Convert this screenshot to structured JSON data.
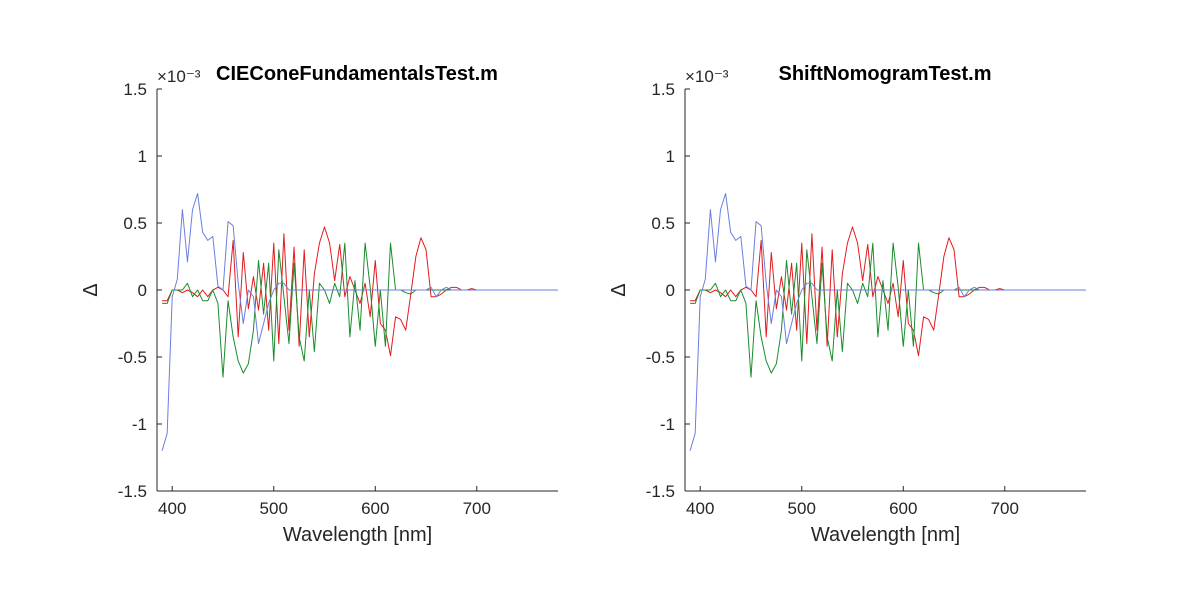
{
  "colors": {
    "red": "#e41a1c",
    "green": "#1a8c2e",
    "blue": "#6a7fe0",
    "axis": "#262626"
  },
  "chart_data": [
    {
      "type": "line",
      "title": "CIEConeFundamentalsTest.m",
      "xlabel": "Wavelength [nm]",
      "ylabel": "Δ",
      "exponent_label": "×10⁻³",
      "xlim": [
        385,
        780
      ],
      "ylim": [
        -1.5,
        1.5
      ],
      "xticks": [
        400,
        500,
        600,
        700
      ],
      "yticks": [
        -1.5,
        -1,
        -0.5,
        0,
        0.5,
        1,
        1.5
      ],
      "xtick_labels": [
        "400",
        "500",
        "600",
        "700"
      ],
      "ytick_labels": [
        "-1.5",
        "-1",
        "-0.5",
        "0",
        "0.5",
        "1",
        "1.5"
      ],
      "grid": false,
      "series": [
        {
          "color": "red",
          "x": [
            390,
            395,
            400,
            405,
            410,
            415,
            420,
            425,
            430,
            435,
            440,
            445,
            450,
            455,
            460,
            465,
            470,
            475,
            480,
            485,
            490,
            495,
            500,
            505,
            510,
            515,
            520,
            525,
            530,
            535,
            540,
            545,
            550,
            555,
            560,
            565,
            570,
            575,
            580,
            585,
            590,
            595,
            600,
            605,
            610,
            615,
            620,
            625,
            630,
            635,
            640,
            645,
            650,
            655,
            660,
            665,
            670,
            675,
            680,
            685,
            690,
            695,
            700,
            705,
            710,
            715,
            720,
            780
          ],
          "y": [
            -0.08,
            -0.08,
            0.0,
            0.0,
            -0.02,
            0.0,
            -0.02,
            -0.05,
            0.0,
            -0.05,
            0.0,
            0.02,
            0.0,
            -0.05,
            0.37,
            -0.35,
            0.28,
            -0.14,
            0.1,
            -0.15,
            0.2,
            -0.3,
            0.35,
            -0.4,
            0.42,
            -0.3,
            0.32,
            -0.42,
            0.3,
            -0.35,
            0.12,
            0.35,
            0.47,
            0.35,
            0.07,
            0.34,
            -0.05,
            0.1,
            0.0,
            -0.1,
            0.05,
            -0.2,
            0.22,
            -0.25,
            -0.3,
            -0.49,
            -0.2,
            -0.22,
            -0.3,
            -0.03,
            0.25,
            0.39,
            0.3,
            -0.05,
            -0.05,
            -0.03,
            0.0,
            0.02,
            0.02,
            0.0,
            0.0,
            0.01,
            0.0,
            0.0,
            0.0,
            0.0,
            0.0,
            0.0
          ]
        },
        {
          "color": "green",
          "x": [
            390,
            395,
            400,
            405,
            410,
            415,
            420,
            425,
            430,
            435,
            440,
            445,
            450,
            455,
            460,
            465,
            470,
            475,
            480,
            485,
            490,
            495,
            500,
            505,
            510,
            515,
            520,
            525,
            530,
            535,
            540,
            545,
            550,
            555,
            560,
            565,
            570,
            575,
            580,
            585,
            590,
            595,
            600,
            605,
            610,
            615,
            620,
            625,
            630,
            635,
            640,
            645,
            650,
            655,
            660,
            665,
            670,
            675,
            680,
            780
          ],
          "y": [
            -0.1,
            -0.1,
            0.0,
            0.0,
            0.0,
            0.05,
            -0.05,
            0.0,
            -0.08,
            -0.08,
            0.0,
            -0.1,
            -0.65,
            -0.08,
            -0.35,
            -0.53,
            -0.62,
            -0.55,
            -0.3,
            0.22,
            -0.18,
            0.2,
            -0.53,
            0.3,
            -0.05,
            -0.4,
            0.2,
            -0.35,
            -0.53,
            0.0,
            -0.46,
            0.05,
            0.0,
            -0.1,
            0.05,
            -0.05,
            0.35,
            -0.35,
            0.07,
            -0.3,
            0.35,
            0.02,
            -0.42,
            0.0,
            -0.42,
            0.35,
            0.0,
            0.0,
            -0.02,
            -0.03,
            0.0,
            0.0,
            0.0,
            0.0,
            0.0,
            0.0,
            0.0,
            0.0,
            0.0,
            0.0
          ]
        },
        {
          "color": "blue",
          "x": [
            390,
            395,
            400,
            405,
            410,
            415,
            420,
            425,
            430,
            435,
            440,
            445,
            450,
            455,
            460,
            465,
            470,
            475,
            480,
            485,
            490,
            495,
            500,
            505,
            510,
            515,
            520,
            525,
            530,
            535,
            540,
            545,
            550,
            555,
            560,
            565,
            570,
            575,
            580,
            585,
            590,
            595,
            600,
            605,
            610,
            615,
            620,
            625,
            630,
            635,
            640,
            645,
            650,
            655,
            660,
            665,
            670,
            675,
            680,
            685,
            690,
            695,
            700,
            705,
            710,
            715,
            720,
            780
          ],
          "y": [
            -1.2,
            -1.07,
            -0.05,
            0.08,
            0.6,
            0.21,
            0.6,
            0.72,
            0.43,
            0.37,
            0.4,
            0.03,
            0.0,
            0.51,
            0.48,
            0.05,
            -0.25,
            0.0,
            -0.05,
            -0.4,
            -0.25,
            -0.1,
            0.0,
            0.05,
            0.05,
            0.0,
            0.0,
            0.0,
            0.0,
            0.0,
            0.0,
            0.0,
            0.0,
            0.0,
            0.0,
            0.0,
            0.0,
            0.0,
            0.0,
            0.0,
            0.0,
            0.0,
            0.0,
            0.0,
            0.0,
            0.0,
            0.0,
            0.0,
            0.0,
            0.0,
            0.0,
            0.0,
            0.0,
            0.02,
            -0.05,
            0.0,
            0.02,
            0.0,
            0.0,
            0.0,
            0.0,
            0.0,
            0.0,
            0.0,
            0.0,
            0.0,
            0.0,
            0.0
          ]
        }
      ]
    },
    {
      "type": "line",
      "title": "ShiftNomogramTest.m",
      "xlabel": "Wavelength [nm]",
      "ylabel": "Δ",
      "exponent_label": "×10⁻³",
      "xlim": [
        385,
        780
      ],
      "ylim": [
        -1.5,
        1.5
      ],
      "xticks": [
        400,
        500,
        600,
        700
      ],
      "yticks": [
        -1.5,
        -1,
        -0.5,
        0,
        0.5,
        1,
        1.5
      ],
      "xtick_labels": [
        "400",
        "500",
        "600",
        "700"
      ],
      "ytick_labels": [
        "-1.5",
        "-1",
        "-0.5",
        "0",
        "0.5",
        "1",
        "1.5"
      ],
      "grid": false,
      "series": [
        {
          "color": "red",
          "x": [
            390,
            395,
            400,
            405,
            410,
            415,
            420,
            425,
            430,
            435,
            440,
            445,
            450,
            455,
            460,
            465,
            470,
            475,
            480,
            485,
            490,
            495,
            500,
            505,
            510,
            515,
            520,
            525,
            530,
            535,
            540,
            545,
            550,
            555,
            560,
            565,
            570,
            575,
            580,
            585,
            590,
            595,
            600,
            605,
            610,
            615,
            620,
            625,
            630,
            635,
            640,
            645,
            650,
            655,
            660,
            665,
            670,
            675,
            680,
            685,
            690,
            695,
            700,
            705,
            710,
            715,
            720,
            780
          ],
          "y": [
            -0.08,
            -0.08,
            0.0,
            0.0,
            -0.02,
            0.0,
            -0.02,
            -0.05,
            0.0,
            -0.05,
            0.0,
            0.02,
            0.0,
            -0.05,
            0.37,
            -0.35,
            0.28,
            -0.14,
            0.1,
            -0.15,
            0.2,
            -0.3,
            0.35,
            -0.4,
            0.42,
            -0.3,
            0.32,
            -0.42,
            0.3,
            -0.35,
            0.12,
            0.35,
            0.47,
            0.35,
            0.07,
            0.34,
            -0.05,
            0.1,
            0.0,
            -0.1,
            0.05,
            -0.2,
            0.22,
            -0.25,
            -0.3,
            -0.49,
            -0.2,
            -0.22,
            -0.3,
            -0.03,
            0.25,
            0.39,
            0.3,
            -0.05,
            -0.05,
            -0.03,
            0.0,
            0.02,
            0.02,
            0.0,
            0.0,
            0.01,
            0.0,
            0.0,
            0.0,
            0.0,
            0.0,
            0.0
          ]
        },
        {
          "color": "green",
          "x": [
            390,
            395,
            400,
            405,
            410,
            415,
            420,
            425,
            430,
            435,
            440,
            445,
            450,
            455,
            460,
            465,
            470,
            475,
            480,
            485,
            490,
            495,
            500,
            505,
            510,
            515,
            520,
            525,
            530,
            535,
            540,
            545,
            550,
            555,
            560,
            565,
            570,
            575,
            580,
            585,
            590,
            595,
            600,
            605,
            610,
            615,
            620,
            625,
            630,
            635,
            640,
            645,
            650,
            655,
            660,
            665,
            670,
            675,
            680,
            780
          ],
          "y": [
            -0.1,
            -0.1,
            0.0,
            0.0,
            0.0,
            0.05,
            -0.05,
            0.0,
            -0.08,
            -0.08,
            0.0,
            -0.1,
            -0.65,
            -0.08,
            -0.35,
            -0.53,
            -0.62,
            -0.55,
            -0.3,
            0.22,
            -0.18,
            0.2,
            -0.53,
            0.3,
            -0.05,
            -0.4,
            0.2,
            -0.35,
            -0.53,
            0.0,
            -0.46,
            0.05,
            0.0,
            -0.1,
            0.05,
            -0.05,
            0.35,
            -0.35,
            0.07,
            -0.3,
            0.35,
            0.02,
            -0.42,
            0.0,
            -0.42,
            0.35,
            0.0,
            0.0,
            -0.02,
            -0.03,
            0.0,
            0.0,
            0.0,
            0.0,
            0.0,
            0.0,
            0.0,
            0.0,
            0.0,
            0.0
          ]
        },
        {
          "color": "blue",
          "x": [
            390,
            395,
            400,
            405,
            410,
            415,
            420,
            425,
            430,
            435,
            440,
            445,
            450,
            455,
            460,
            465,
            470,
            475,
            480,
            485,
            490,
            495,
            500,
            505,
            510,
            515,
            520,
            525,
            530,
            535,
            540,
            545,
            550,
            555,
            560,
            565,
            570,
            575,
            580,
            585,
            590,
            595,
            600,
            605,
            610,
            615,
            620,
            625,
            630,
            635,
            640,
            645,
            650,
            655,
            660,
            665,
            670,
            675,
            680,
            685,
            690,
            695,
            700,
            705,
            710,
            715,
            720,
            780
          ],
          "y": [
            -1.2,
            -1.07,
            -0.05,
            0.08,
            0.6,
            0.21,
            0.6,
            0.72,
            0.43,
            0.37,
            0.4,
            0.03,
            0.0,
            0.51,
            0.48,
            0.05,
            -0.25,
            0.0,
            -0.05,
            -0.4,
            -0.25,
            -0.1,
            0.0,
            0.05,
            0.05,
            0.0,
            0.0,
            0.0,
            0.0,
            0.0,
            0.0,
            0.0,
            0.0,
            0.0,
            0.0,
            0.0,
            0.0,
            0.0,
            0.0,
            0.0,
            0.0,
            0.0,
            0.0,
            0.0,
            0.0,
            0.0,
            0.0,
            0.0,
            0.0,
            0.0,
            0.0,
            0.0,
            0.0,
            0.02,
            -0.05,
            0.0,
            0.02,
            0.0,
            0.0,
            0.0,
            0.0,
            0.0,
            0.0,
            0.0,
            0.0,
            0.0,
            0.0,
            0.0
          ]
        }
      ]
    }
  ]
}
